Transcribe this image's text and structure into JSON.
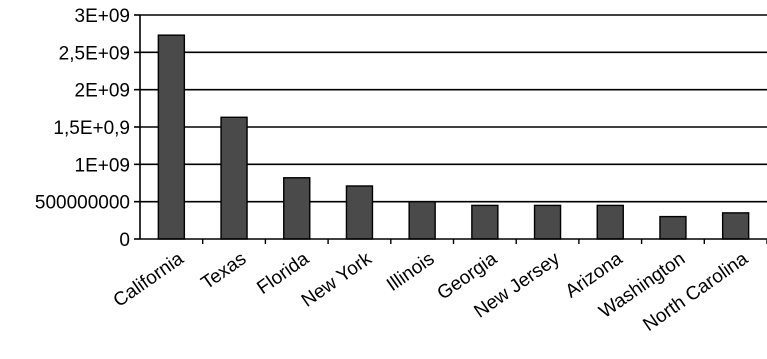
{
  "chart_data": {
    "type": "bar",
    "title": "",
    "xlabel": "",
    "ylabel": "",
    "categories": [
      "California",
      "Texas",
      "Florida",
      "New York",
      "Illinois",
      "Georgia",
      "New Jersey",
      "Arizona",
      "Washington",
      "North Carolina"
    ],
    "values": [
      2730000000,
      1630000000,
      820000000,
      710000000,
      500000000,
      450000000,
      450000000,
      450000000,
      300000000,
      350000000
    ],
    "ylim": [
      0,
      3000000000
    ],
    "yticks": [
      {
        "value": 0,
        "label": "0"
      },
      {
        "value": 500000000,
        "label": "500000000"
      },
      {
        "value": 1000000000,
        "label": "1E+09"
      },
      {
        "value": 1500000000,
        "label": "1,5E+0,9"
      },
      {
        "value": 2000000000,
        "label": "2E+09"
      },
      {
        "value": 2500000000,
        "label": "2,5E+09"
      },
      {
        "value": 3000000000,
        "label": "3E+09"
      }
    ],
    "grid": true,
    "bar_color": "#4a4a4a",
    "legend": "none"
  }
}
